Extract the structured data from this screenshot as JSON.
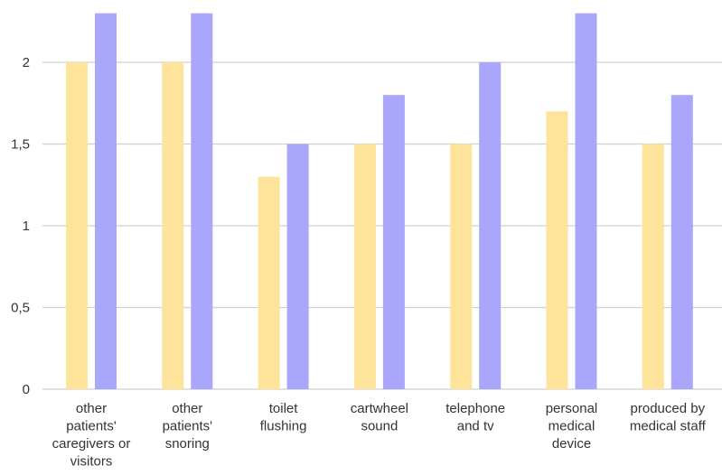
{
  "chart_data": {
    "type": "bar",
    "categories": [
      [
        "other",
        "patients'",
        "caregivers or",
        "visitors"
      ],
      [
        "other",
        "patients'",
        "snoring"
      ],
      [
        "toilet",
        "flushing"
      ],
      [
        "cartwheel",
        "sound"
      ],
      [
        "telephone",
        "and tv"
      ],
      [
        "personal",
        "medical",
        "device"
      ],
      [
        "produced by",
        "medical staff"
      ]
    ],
    "series": [
      {
        "color": "#fde49a",
        "values": [
          2.0,
          2.0,
          1.3,
          1.5,
          1.5,
          1.7,
          1.5
        ]
      },
      {
        "color": "#aaa6fb",
        "values": [
          2.3,
          2.3,
          1.5,
          1.8,
          2.0,
          2.3,
          1.8
        ]
      }
    ],
    "ylim": [
      0,
      2.3
    ],
    "yticks": [
      {
        "value": 0,
        "label": "0"
      },
      {
        "value": 0.5,
        "label": "0,5"
      },
      {
        "value": 1,
        "label": "1"
      },
      {
        "value": 1.5,
        "label": "1,5"
      },
      {
        "value": 2,
        "label": "2"
      }
    ],
    "grid": true
  }
}
